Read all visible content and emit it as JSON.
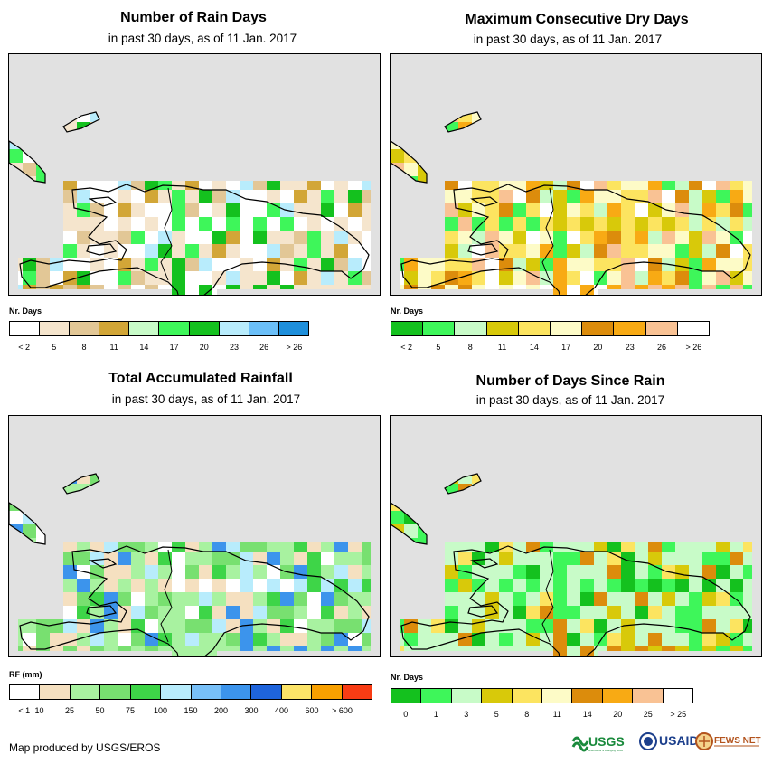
{
  "panels": [
    {
      "title": "Number of Rain Days",
      "subtitle": "in past 30 days, as of 11 Jan. 2017",
      "legend_title": "Nr. Days",
      "legend_colors": [
        "#ffffff",
        "#f5e5cd",
        "#e2c796",
        "#d2a637",
        "#c8fbc8",
        "#3ef65a",
        "#14c11e",
        "#b8ecfc",
        "#6bbff8",
        "#1e8fdb"
      ],
      "legend_labels": [
        "< 2",
        "5",
        "8",
        "11",
        "14",
        "17",
        "20",
        "23",
        "26",
        "> 26"
      ],
      "label_mode": "center"
    },
    {
      "title": "Maximum Consecutive Dry Days",
      "subtitle": "in past 30 days, as of 11 Jan. 2017",
      "legend_title": "Nr. Days",
      "legend_colors": [
        "#14c11e",
        "#3ef65a",
        "#c8fbc8",
        "#d8c90a",
        "#fce460",
        "#fdfbc7",
        "#dc8c0c",
        "#f8aa14",
        "#f9c294",
        "#ffffff"
      ],
      "legend_labels": [
        "< 2",
        "5",
        "8",
        "11",
        "14",
        "17",
        "20",
        "23",
        "26",
        "> 26"
      ],
      "label_mode": "center"
    },
    {
      "title": "Total Accumulated Rainfall",
      "subtitle": "in past 30 days, as of 11 Jan. 2017",
      "legend_title": "RF (mm)",
      "legend_colors": [
        "#ffffff",
        "#f5e0c0",
        "#a8f2a0",
        "#78e070",
        "#3ed548",
        "#b8ecfc",
        "#78c0f8",
        "#3c94ec",
        "#1e64dc",
        "#fce468",
        "#f8a000",
        "#f83c14"
      ],
      "legend_labels": [
        "< 1",
        "10",
        "25",
        "50",
        "75",
        "100",
        "150",
        "200",
        "300",
        "400",
        "600",
        "> 600"
      ],
      "label_mode": "boundary"
    },
    {
      "title": "Number of Days Since Rain",
      "subtitle": "in past 30 days, as of 11 Jan. 2017",
      "legend_title": "Nr. Days",
      "legend_colors": [
        "#14c11e",
        "#3ef65a",
        "#c8fbc8",
        "#d8c90a",
        "#fce460",
        "#fdfbc7",
        "#dc8c0c",
        "#f8aa14",
        "#f9c294",
        "#ffffff"
      ],
      "legend_labels": [
        "0",
        "1",
        "3",
        "5",
        "8",
        "11",
        "14",
        "20",
        "25",
        "> 25"
      ],
      "label_mode": "center"
    }
  ],
  "footer": "Map produced by USGS/EROS",
  "logos": {
    "usgs": "USGS",
    "usaid": "USAID",
    "fewsnet": "FEWS NET"
  }
}
